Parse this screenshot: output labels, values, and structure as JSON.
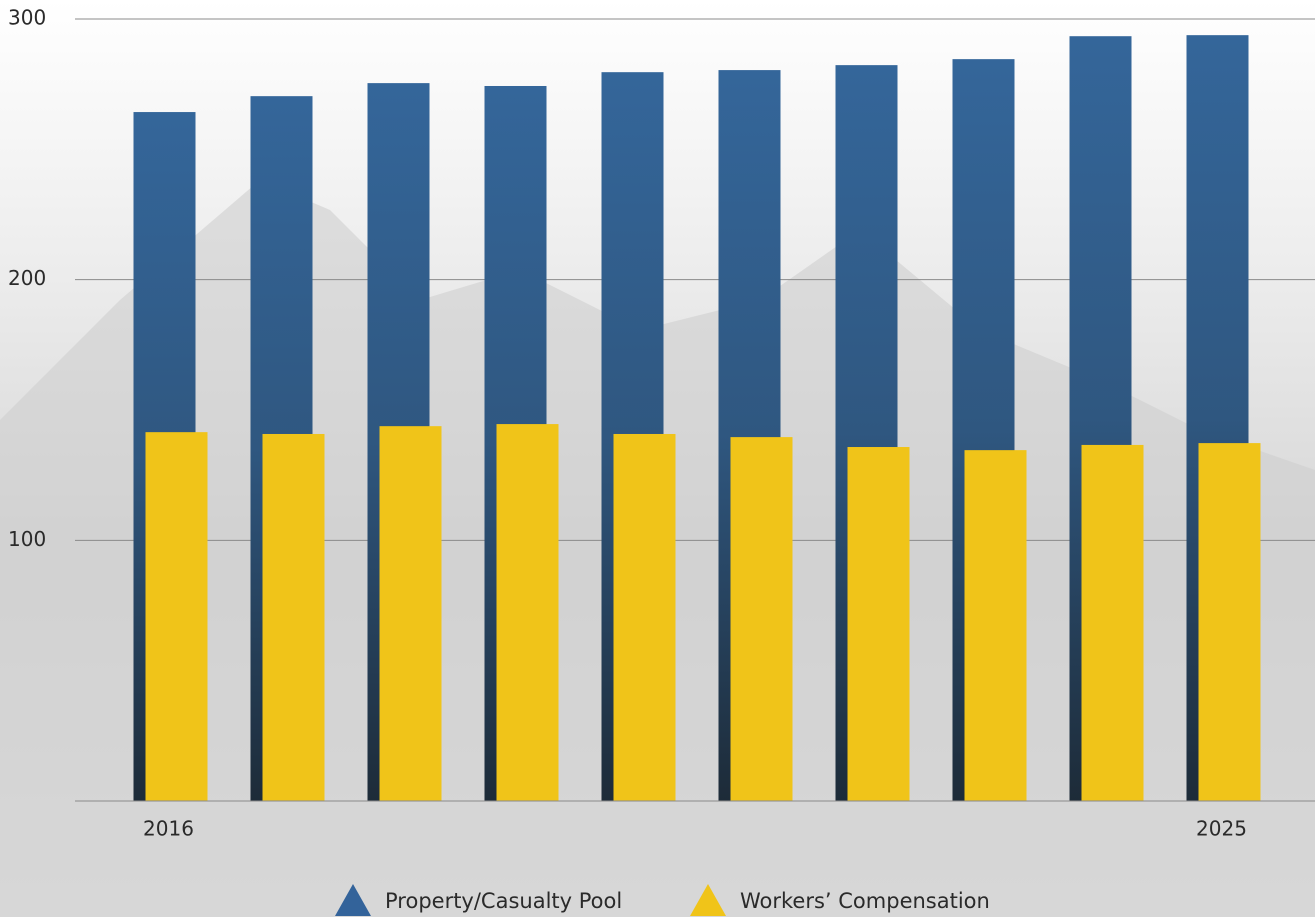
{
  "chart_data": {
    "type": "bar",
    "categories": [
      "2016",
      null,
      null,
      null,
      null,
      null,
      null,
      null,
      null,
      "2025"
    ],
    "series": [
      {
        "name": "Property/Casualty Pool",
        "color": "#33639a",
        "values": [
          264.3,
          270.4,
          275.4,
          274.3,
          279.6,
          280.4,
          282.3,
          284.6,
          293.4,
          293.8
        ]
      },
      {
        "name": "Workers’ Compensation",
        "color": "#f0c419",
        "values": [
          141.5,
          140.8,
          143.8,
          144.6,
          140.8,
          139.6,
          135.8,
          134.6,
          136.6,
          137.3
        ]
      }
    ],
    "ylim": [
      0,
      300
    ],
    "yticks": [
      100,
      200,
      300
    ],
    "grid": true,
    "legend": "bottom"
  }
}
